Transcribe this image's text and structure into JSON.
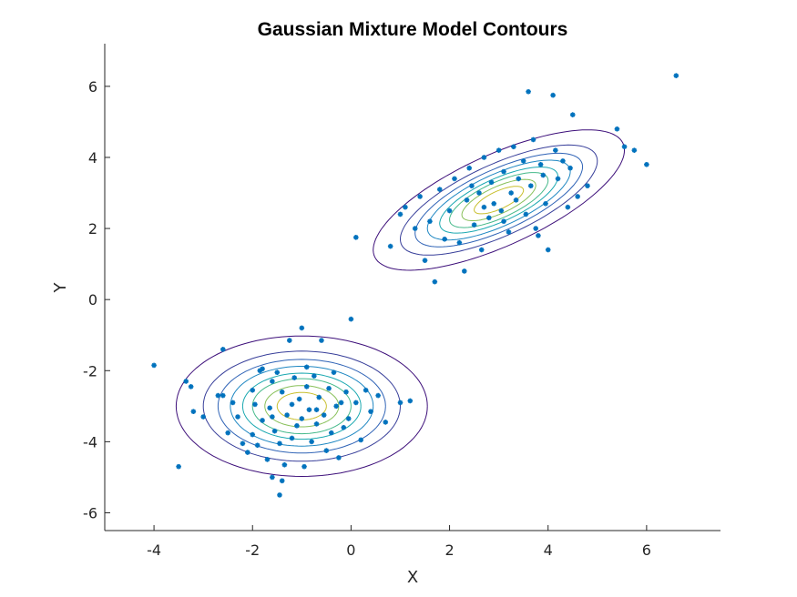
{
  "chart_data": {
    "type": "scatter",
    "title": "Gaussian Mixture Model Contours",
    "xlabel": "X",
    "ylabel": "Y",
    "xlim": [
      -5,
      7.5
    ],
    "ylim": [
      -6.5,
      7.2
    ],
    "xticks": [
      -4,
      -2,
      0,
      2,
      4,
      6
    ],
    "yticks": [
      -6,
      -4,
      -2,
      0,
      2,
      4,
      6
    ],
    "box": "left-bottom-only",
    "grid": false,
    "legend": "none",
    "colors": {
      "points": "#0072BD",
      "contour_levels": [
        "#3d0f7a",
        "#383f9a",
        "#2f63b6",
        "#1e87c2",
        "#1aa8b0",
        "#45b98a",
        "#88c05a",
        "#c8bf2e"
      ]
    },
    "components": [
      {
        "mean": [
          -1.0,
          -3.0
        ],
        "cov": [
          [
            1.0,
            0.0
          ],
          [
            0.0,
            0.6
          ]
        ],
        "contour_scale": [
          2.55,
          2.0,
          1.7,
          1.45,
          1.2,
          1.0,
          0.75,
          0.5
        ]
      },
      {
        "mean": [
          3.0,
          2.8
        ],
        "cov": [
          [
            1.0,
            0.55
          ],
          [
            0.55,
            0.6
          ]
        ],
        "contour_scale": [
          2.55,
          2.0,
          1.7,
          1.45,
          1.2,
          1.0,
          0.75,
          0.5
        ]
      }
    ],
    "points": [
      [
        -4.0,
        -1.85
      ],
      [
        -3.5,
        -4.7
      ],
      [
        -3.35,
        -2.3
      ],
      [
        -3.25,
        -2.45
      ],
      [
        -3.2,
        -3.15
      ],
      [
        -3.0,
        -3.3
      ],
      [
        -2.7,
        -2.7
      ],
      [
        -2.6,
        -2.7
      ],
      [
        -2.6,
        -1.4
      ],
      [
        -2.5,
        -3.75
      ],
      [
        -2.4,
        -2.9
      ],
      [
        -2.3,
        -3.3
      ],
      [
        -2.2,
        -4.05
      ],
      [
        -2.1,
        -4.3
      ],
      [
        -2.0,
        -3.8
      ],
      [
        -1.95,
        -2.95
      ],
      [
        -1.9,
        -4.1
      ],
      [
        -1.85,
        -2.0
      ],
      [
        -1.8,
        -3.4
      ],
      [
        -1.7,
        -4.5
      ],
      [
        -1.65,
        -3.05
      ],
      [
        -1.6,
        -2.3
      ],
      [
        -1.55,
        -3.7
      ],
      [
        -1.5,
        -2.05
      ],
      [
        -1.45,
        -4.05
      ],
      [
        -1.4,
        -2.6
      ],
      [
        -1.35,
        -4.65
      ],
      [
        -1.3,
        -3.25
      ],
      [
        -1.25,
        -1.15
      ],
      [
        -1.2,
        -3.9
      ],
      [
        -1.15,
        -2.2
      ],
      [
        -1.1,
        -3.55
      ],
      [
        -1.05,
        -2.8
      ],
      [
        -1.0,
        -3.35
      ],
      [
        -0.95,
        -4.7
      ],
      [
        -0.9,
        -2.45
      ],
      [
        -0.85,
        -3.1
      ],
      [
        -0.8,
        -4.0
      ],
      [
        -0.75,
        -2.15
      ],
      [
        -0.7,
        -3.5
      ],
      [
        -0.65,
        -2.75
      ],
      [
        -0.6,
        -1.15
      ],
      [
        -0.55,
        -3.25
      ],
      [
        -0.5,
        -4.25
      ],
      [
        -0.45,
        -2.5
      ],
      [
        -0.4,
        -3.75
      ],
      [
        -0.35,
        -2.05
      ],
      [
        -0.3,
        -3.0
      ],
      [
        -0.25,
        -4.45
      ],
      [
        -0.2,
        -2.9
      ],
      [
        -0.15,
        -3.6
      ],
      [
        -0.1,
        -2.6
      ],
      [
        -0.05,
        -3.35
      ],
      [
        0.0,
        -0.55
      ],
      [
        0.1,
        -2.9
      ],
      [
        0.2,
        -3.95
      ],
      [
        0.3,
        -2.55
      ],
      [
        0.4,
        -3.15
      ],
      [
        0.55,
        -2.7
      ],
      [
        0.7,
        -3.45
      ],
      [
        1.0,
        -2.9
      ],
      [
        1.2,
        -2.85
      ],
      [
        -1.8,
        -1.95
      ],
      [
        -2.0,
        -2.55
      ],
      [
        -1.0,
        -0.8
      ],
      [
        -1.4,
        -5.1
      ],
      [
        -1.6,
        -5.0
      ],
      [
        -1.45,
        -5.5
      ],
      [
        -0.9,
        -1.9
      ],
      [
        -1.2,
        -2.95
      ],
      [
        -0.7,
        -3.1
      ],
      [
        -1.6,
        -3.3
      ],
      [
        0.1,
        1.75
      ],
      [
        0.8,
        1.5
      ],
      [
        1.0,
        2.4
      ],
      [
        1.1,
        2.6
      ],
      [
        1.3,
        2.0
      ],
      [
        1.4,
        2.9
      ],
      [
        1.5,
        1.1
      ],
      [
        1.6,
        2.2
      ],
      [
        1.7,
        0.5
      ],
      [
        1.8,
        3.1
      ],
      [
        1.9,
        1.7
      ],
      [
        2.0,
        2.5
      ],
      [
        2.1,
        3.4
      ],
      [
        2.2,
        1.6
      ],
      [
        2.3,
        0.8
      ],
      [
        2.35,
        2.8
      ],
      [
        2.4,
        3.7
      ],
      [
        2.5,
        2.1
      ],
      [
        2.6,
        3.0
      ],
      [
        2.65,
        1.4
      ],
      [
        2.7,
        4.0
      ],
      [
        2.8,
        2.3
      ],
      [
        2.85,
        3.3
      ],
      [
        2.9,
        2.7
      ],
      [
        3.0,
        4.2
      ],
      [
        3.05,
        2.5
      ],
      [
        3.1,
        3.6
      ],
      [
        3.2,
        1.9
      ],
      [
        3.25,
        3.0
      ],
      [
        3.3,
        4.3
      ],
      [
        3.35,
        2.8
      ],
      [
        3.4,
        3.4
      ],
      [
        3.5,
        3.9
      ],
      [
        3.55,
        2.4
      ],
      [
        3.6,
        5.85
      ],
      [
        3.65,
        3.2
      ],
      [
        3.7,
        4.5
      ],
      [
        3.75,
        2.0
      ],
      [
        3.8,
        1.8
      ],
      [
        3.85,
        3.8
      ],
      [
        3.9,
        3.5
      ],
      [
        3.95,
        2.7
      ],
      [
        4.0,
        1.4
      ],
      [
        4.1,
        5.75
      ],
      [
        4.15,
        4.2
      ],
      [
        4.2,
        3.4
      ],
      [
        4.3,
        3.9
      ],
      [
        4.4,
        2.6
      ],
      [
        4.45,
        3.7
      ],
      [
        4.5,
        5.2
      ],
      [
        4.6,
        2.9
      ],
      [
        4.8,
        3.2
      ],
      [
        5.4,
        4.8
      ],
      [
        5.55,
        4.3
      ],
      [
        5.75,
        4.2
      ],
      [
        6.0,
        3.8
      ],
      [
        6.6,
        6.3
      ],
      [
        2.7,
        2.6
      ],
      [
        3.1,
        2.2
      ],
      [
        2.45,
        3.2
      ]
    ]
  }
}
